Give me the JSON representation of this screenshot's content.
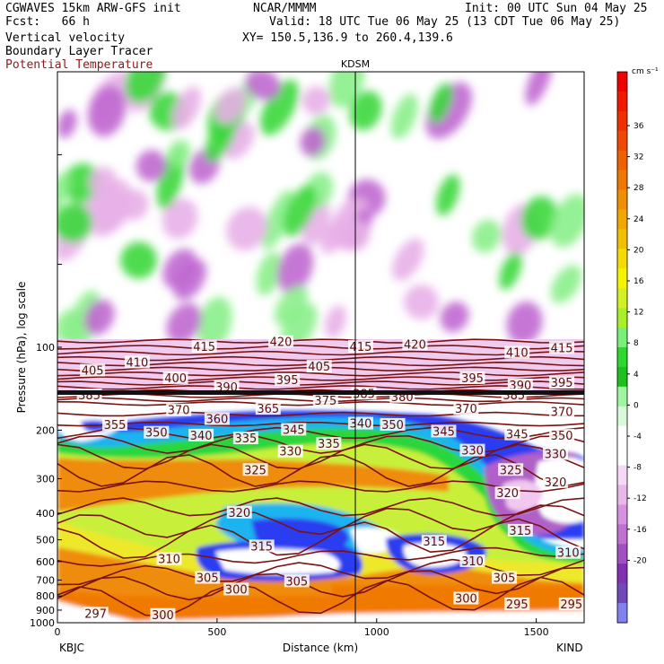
{
  "header": {
    "model": "CGWAVES 15km ARW-GFS init",
    "source": "NCAR/MMMM",
    "init": "Init: 00 UTC Sun 04 May 25",
    "fcst": "Fcst:   66 h",
    "valid": "Valid: 18 UTC Tue 06 May 25 (13 CDT Tue 06 May 25)",
    "xy": "XY= 150.5,136.9 to 260.4,139.6",
    "field1": "Vertical velocity",
    "field2": "Boundary Layer Tracer",
    "field3": "Potential Temperature"
  },
  "colors": {
    "theta": "#7a1212",
    "up": [
      "#ffffff",
      "#a0f5a0",
      "#2bd82b",
      "#78f078",
      "#d4f020",
      "#f5f500",
      "#f5c000",
      "#f09000",
      "#f07000",
      "#f05000",
      "#f03000",
      "#f00000"
    ],
    "down": [
      "#f0c8f0",
      "#d890e0",
      "#b060c8",
      "#9038b0",
      "#8080f0"
    ]
  },
  "chart_data": {
    "type": "heatmap",
    "xlabel": "Distance (km)",
    "ylabel": "Pressure (hPa), log scale",
    "x_ticks": [
      "0",
      "500",
      "1000",
      "1500"
    ],
    "y_ticks": [
      "100",
      "200",
      "300",
      "400",
      "500",
      "600",
      "700",
      "800",
      "900",
      "1000"
    ],
    "xlim": [
      0,
      1650
    ],
    "ylim": [
      1000,
      10
    ],
    "y_scale": "log",
    "left_station": "KBJC",
    "right_station": "KIND",
    "marker_station": "KDSM",
    "marker_x_km": 940,
    "colorbar": {
      "unit": "cm s⁻¹",
      "labels": [
        "36",
        "32",
        "28",
        "24",
        "20",
        "16",
        "12",
        "8",
        "4",
        "0",
        "-4",
        "-8",
        "-12",
        "-16",
        "-20"
      ]
    },
    "theta_labels": [
      {
        "v": "415",
        "x": 460,
        "p": 100
      },
      {
        "v": "420",
        "x": 700,
        "p": 96
      },
      {
        "v": "415",
        "x": 950,
        "p": 100
      },
      {
        "v": "420",
        "x": 1120,
        "p": 98
      },
      {
        "v": "410",
        "x": 1440,
        "p": 105
      },
      {
        "v": "415",
        "x": 1580,
        "p": 101
      },
      {
        "v": "405",
        "x": 110,
        "p": 122
      },
      {
        "v": "410",
        "x": 250,
        "p": 114
      },
      {
        "v": "400",
        "x": 370,
        "p": 130
      },
      {
        "v": "405",
        "x": 820,
        "p": 118
      },
      {
        "v": "395",
        "x": 720,
        "p": 132
      },
      {
        "v": "390",
        "x": 530,
        "p": 140
      },
      {
        "v": "395",
        "x": 1300,
        "p": 130
      },
      {
        "v": "390",
        "x": 1450,
        "p": 138
      },
      {
        "v": "395",
        "x": 1580,
        "p": 135
      },
      {
        "v": "385",
        "x": 100,
        "p": 150
      },
      {
        "v": "375",
        "x": 840,
        "p": 157
      },
      {
        "v": "385",
        "x": 960,
        "p": 148
      },
      {
        "v": "380",
        "x": 1080,
        "p": 152
      },
      {
        "v": "385",
        "x": 1430,
        "p": 150
      },
      {
        "v": "370",
        "x": 380,
        "p": 170
      },
      {
        "v": "365",
        "x": 660,
        "p": 168
      },
      {
        "v": "360",
        "x": 500,
        "p": 183
      },
      {
        "v": "370",
        "x": 1280,
        "p": 168
      },
      {
        "v": "370",
        "x": 1580,
        "p": 172
      },
      {
        "v": "355",
        "x": 180,
        "p": 192
      },
      {
        "v": "350",
        "x": 310,
        "p": 205
      },
      {
        "v": "345",
        "x": 740,
        "p": 200
      },
      {
        "v": "340",
        "x": 950,
        "p": 190
      },
      {
        "v": "350",
        "x": 1050,
        "p": 192
      },
      {
        "v": "345",
        "x": 1210,
        "p": 203
      },
      {
        "v": "345",
        "x": 1440,
        "p": 208
      },
      {
        "v": "350",
        "x": 1580,
        "p": 210
      },
      {
        "v": "340",
        "x": 450,
        "p": 210
      },
      {
        "v": "335",
        "x": 590,
        "p": 215
      },
      {
        "v": "335",
        "x": 850,
        "p": 225
      },
      {
        "v": "330",
        "x": 730,
        "p": 240
      },
      {
        "v": "330",
        "x": 1300,
        "p": 238
      },
      {
        "v": "330",
        "x": 1560,
        "p": 245
      },
      {
        "v": "325",
        "x": 620,
        "p": 280
      },
      {
        "v": "325",
        "x": 1420,
        "p": 280
      },
      {
        "v": "320",
        "x": 1560,
        "p": 310
      },
      {
        "v": "320",
        "x": 1410,
        "p": 340
      },
      {
        "v": "320",
        "x": 570,
        "p": 400
      },
      {
        "v": "315",
        "x": 1450,
        "p": 465
      },
      {
        "v": "315",
        "x": 640,
        "p": 530
      },
      {
        "v": "315",
        "x": 1180,
        "p": 510
      },
      {
        "v": "310",
        "x": 350,
        "p": 590
      },
      {
        "v": "310",
        "x": 1300,
        "p": 600
      },
      {
        "v": "310",
        "x": 1600,
        "p": 560
      },
      {
        "v": "305",
        "x": 470,
        "p": 690
      },
      {
        "v": "305",
        "x": 750,
        "p": 710
      },
      {
        "v": "305",
        "x": 1400,
        "p": 690
      },
      {
        "v": "300",
        "x": 560,
        "p": 760
      },
      {
        "v": "300",
        "x": 330,
        "p": 940
      },
      {
        "v": "300",
        "x": 1280,
        "p": 820
      },
      {
        "v": "297",
        "x": 120,
        "p": 930
      },
      {
        "v": "295",
        "x": 1440,
        "p": 860
      },
      {
        "v": "295",
        "x": 1610,
        "p": 860
      }
    ]
  }
}
